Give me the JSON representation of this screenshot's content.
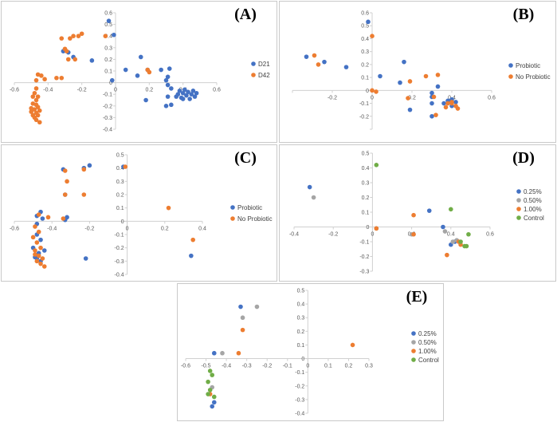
{
  "chart_data": [
    {
      "type": "scatter",
      "panel_label": "(A)",
      "title": "",
      "xlabel": "",
      "ylabel": "",
      "xlim": [
        -0.6,
        0.6
      ],
      "ylim": [
        -0.4,
        0.6
      ],
      "x_ticks": [
        -0.6,
        -0.4,
        -0.2,
        0,
        0.2,
        0.4,
        0.6
      ],
      "y_ticks": [
        -0.4,
        -0.3,
        -0.2,
        -0.1,
        0,
        0.1,
        0.2,
        0.3,
        0.4,
        0.5,
        0.6
      ],
      "x_tick_labels": [
        "-0.6",
        "-0.4",
        "-0.2",
        "0",
        "0.2",
        "0.4",
        "0.6"
      ],
      "y_tick_labels": [
        "-0.4",
        "-0.3",
        "-0.2",
        "-0.1",
        "0",
        "0.1",
        "0.2",
        "0.3",
        "0.4",
        "0.5",
        "0.6"
      ],
      "grid": false,
      "legend": "right",
      "series": [
        {
          "name": "D21",
          "color": "#4472C4",
          "points": [
            [
              -0.04,
              0.53
            ],
            [
              -0.01,
              0.41
            ],
            [
              -0.31,
              0.27
            ],
            [
              -0.28,
              0.26
            ],
            [
              -0.25,
              0.22
            ],
            [
              -0.14,
              0.19
            ],
            [
              -0.02,
              0.02
            ],
            [
              0.06,
              0.11
            ],
            [
              0.13,
              0.06
            ],
            [
              0.15,
              0.22
            ],
            [
              0.19,
              0.11
            ],
            [
              0.18,
              -0.15
            ],
            [
              0.27,
              0.11
            ],
            [
              0.32,
              0.12
            ],
            [
              0.31,
              0.05
            ],
            [
              0.3,
              0.02
            ],
            [
              0.31,
              -0.02
            ],
            [
              0.33,
              -0.05
            ],
            [
              0.31,
              -0.12
            ],
            [
              0.3,
              -0.2
            ],
            [
              0.33,
              -0.19
            ],
            [
              0.37,
              -0.1
            ],
            [
              0.38,
              -0.07
            ],
            [
              0.39,
              -0.13
            ],
            [
              0.4,
              -0.09
            ],
            [
              0.41,
              -0.06
            ],
            [
              0.42,
              -0.11
            ],
            [
              0.43,
              -0.08
            ],
            [
              0.44,
              -0.14
            ],
            [
              0.45,
              -0.1
            ],
            [
              0.46,
              -0.07
            ],
            [
              0.47,
              -0.12
            ],
            [
              0.48,
              -0.09
            ],
            [
              0.4,
              -0.14
            ],
            [
              0.36,
              -0.12
            ]
          ]
        },
        {
          "name": "D42",
          "color": "#ED7D31",
          "points": [
            [
              -0.32,
              0.38
            ],
            [
              -0.27,
              0.38
            ],
            [
              -0.25,
              0.4
            ],
            [
              -0.2,
              0.42
            ],
            [
              -0.3,
              0.29
            ],
            [
              -0.29,
              0.27
            ],
            [
              -0.24,
              0.2
            ],
            [
              -0.28,
              0.2
            ],
            [
              -0.06,
              0.4
            ],
            [
              -0.32,
              0.04
            ],
            [
              -0.35,
              0.04
            ],
            [
              -0.22,
              0.4
            ],
            [
              -0.44,
              0.06
            ],
            [
              -0.42,
              0.03
            ],
            [
              -0.46,
              0.07
            ],
            [
              -0.47,
              -0.05
            ],
            [
              -0.48,
              -0.09
            ],
            [
              -0.49,
              -0.12
            ],
            [
              -0.47,
              -0.15
            ],
            [
              -0.49,
              -0.18
            ],
            [
              -0.46,
              -0.21
            ],
            [
              -0.48,
              -0.23
            ],
            [
              -0.47,
              -0.26
            ],
            [
              -0.49,
              -0.28
            ],
            [
              -0.48,
              -0.3
            ],
            [
              -0.47,
              -0.32
            ],
            [
              -0.45,
              -0.34
            ],
            [
              -0.46,
              -0.12
            ],
            [
              -0.47,
              -0.19
            ],
            [
              -0.5,
              -0.22
            ],
            [
              -0.45,
              -0.24
            ],
            [
              -0.46,
              -0.28
            ],
            [
              -0.5,
              -0.25
            ],
            [
              -0.47,
              0.02
            ],
            [
              0.2,
              0.09
            ],
            [
              0.19,
              0.11
            ]
          ]
        }
      ]
    },
    {
      "type": "scatter",
      "panel_label": "(B)",
      "title": "",
      "xlabel": "",
      "ylabel": "",
      "xlim": [
        -0.4,
        0.6
      ],
      "ylim": [
        -0.3,
        0.6
      ],
      "x_ticks": [
        -0.4,
        -0.2,
        0,
        0.2,
        0.4,
        0.6
      ],
      "y_ticks": [
        -0.3,
        -0.2,
        -0.1,
        0,
        0.1,
        0.2,
        0.3,
        0.4,
        0.5,
        0.6
      ],
      "x_tick_labels": [
        "",
        "-0.2",
        "0",
        "0.2",
        "0.4",
        "0.6"
      ],
      "y_tick_labels": [
        "",
        "-0.2",
        "-0.1",
        "0",
        "0.1",
        "0.2",
        "0.3",
        "0.4",
        "0.5",
        "0.6"
      ],
      "grid": false,
      "legend": "right",
      "series": [
        {
          "name": "Probiotic",
          "color": "#4472C4",
          "points": [
            [
              -0.02,
              0.53
            ],
            [
              -0.33,
              0.26
            ],
            [
              -0.24,
              0.22
            ],
            [
              -0.13,
              0.18
            ],
            [
              0.04,
              0.11
            ],
            [
              0.14,
              0.06
            ],
            [
              0.16,
              0.22
            ],
            [
              0.19,
              -0.15
            ],
            [
              0.3,
              -0.2
            ],
            [
              0.3,
              -0.1
            ],
            [
              0.3,
              -0.05
            ],
            [
              0.3,
              -0.02
            ],
            [
              0.33,
              0.03
            ],
            [
              0.38,
              -0.08
            ],
            [
              0.4,
              -0.07
            ],
            [
              0.42,
              -0.09
            ],
            [
              0.4,
              -0.12
            ],
            [
              0.36,
              -0.1
            ]
          ]
        },
        {
          "name": "No Probiotic",
          "color": "#ED7D31",
          "points": [
            [
              0.0,
              0.42
            ],
            [
              -0.29,
              0.27
            ],
            [
              -0.27,
              0.2
            ],
            [
              0.0,
              0.0
            ],
            [
              0.02,
              -0.01
            ],
            [
              0.19,
              0.07
            ],
            [
              0.18,
              -0.06
            ],
            [
              0.27,
              0.11
            ],
            [
              0.33,
              0.12
            ],
            [
              0.31,
              -0.05
            ],
            [
              0.32,
              -0.19
            ],
            [
              0.38,
              -0.1
            ],
            [
              0.4,
              -0.1
            ],
            [
              0.42,
              -0.12
            ],
            [
              0.43,
              -0.14
            ],
            [
              0.37,
              -0.13
            ],
            [
              0.4,
              -0.09
            ]
          ]
        }
      ]
    },
    {
      "type": "scatter",
      "panel_label": "(C)",
      "title": "",
      "xlabel": "",
      "ylabel": "",
      "xlim": [
        -0.6,
        0.4
      ],
      "ylim": [
        -0.4,
        0.5
      ],
      "x_ticks": [
        -0.6,
        -0.4,
        -0.2,
        0,
        0.2,
        0.4
      ],
      "y_ticks": [
        -0.4,
        -0.3,
        -0.2,
        -0.1,
        0,
        0.1,
        0.2,
        0.3,
        0.4,
        0.5
      ],
      "x_tick_labels": [
        "-0.6",
        "-0.4",
        "-0.2",
        "0",
        "0.2",
        "0.4"
      ],
      "y_tick_labels": [
        "-0.4",
        "-0.3",
        "-0.2",
        "-0.1",
        "0",
        "0.1",
        "0.2",
        "0.3",
        "0.4",
        "0.5"
      ],
      "grid": false,
      "legend": "right",
      "series": [
        {
          "name": "Probiotic",
          "color": "#4472C4",
          "points": [
            [
              -0.2,
              0.42
            ],
            [
              -0.23,
              0.4
            ],
            [
              -0.34,
              0.39
            ],
            [
              -0.33,
              0.2
            ],
            [
              -0.46,
              0.07
            ],
            [
              -0.48,
              0.04
            ],
            [
              -0.45,
              0.02
            ],
            [
              -0.33,
              0.01
            ],
            [
              -0.48,
              -0.02
            ],
            [
              -0.48,
              -0.1
            ],
            [
              -0.46,
              -0.14
            ],
            [
              -0.5,
              -0.2
            ],
            [
              -0.47,
              -0.24
            ],
            [
              -0.49,
              -0.27
            ],
            [
              -0.46,
              -0.3
            ],
            [
              -0.48,
              -0.28
            ],
            [
              -0.44,
              -0.22
            ],
            [
              -0.22,
              -0.28
            ],
            [
              0.34,
              -0.26
            ],
            [
              -0.02,
              0.41
            ],
            [
              -0.32,
              0.03
            ]
          ]
        },
        {
          "name": "No Probiotic",
          "color": "#ED7D31",
          "points": [
            [
              -0.33,
              0.38
            ],
            [
              -0.23,
              0.39
            ],
            [
              -0.01,
              0.41
            ],
            [
              -0.32,
              0.3
            ],
            [
              -0.33,
              0.2
            ],
            [
              -0.23,
              0.2
            ],
            [
              0.22,
              0.1
            ],
            [
              -0.47,
              0.05
            ],
            [
              -0.42,
              0.03
            ],
            [
              -0.34,
              0.02
            ],
            [
              -0.49,
              -0.04
            ],
            [
              -0.47,
              -0.08
            ],
            [
              -0.5,
              -0.12
            ],
            [
              -0.48,
              -0.16
            ],
            [
              -0.46,
              -0.2
            ],
            [
              -0.49,
              -0.22
            ],
            [
              -0.47,
              -0.26
            ],
            [
              -0.45,
              -0.28
            ],
            [
              -0.48,
              -0.3
            ],
            [
              -0.46,
              -0.32
            ],
            [
              -0.44,
              -0.34
            ],
            [
              0.35,
              -0.14
            ],
            [
              -0.49,
              -0.25
            ]
          ]
        }
      ]
    },
    {
      "type": "scatter",
      "panel_label": "(D)",
      "title": "",
      "xlabel": "",
      "ylabel": "",
      "xlim": [
        -0.4,
        0.6
      ],
      "ylim": [
        -0.3,
        0.5
      ],
      "x_ticks": [
        -0.4,
        -0.2,
        0,
        0.2,
        0.4,
        0.6
      ],
      "y_ticks": [
        -0.3,
        -0.2,
        -0.1,
        0,
        0.1,
        0.2,
        0.3,
        0.4,
        0.5
      ],
      "x_tick_labels": [
        "-0.4",
        "-0.2",
        "0",
        "0.2",
        "0.4",
        "0.6"
      ],
      "y_tick_labels": [
        "-0.3",
        "-0.2",
        "-0.1",
        "0",
        "0.1",
        "0.2",
        "0.3",
        "0.4",
        "0.5"
      ],
      "grid": false,
      "legend": "right",
      "series": [
        {
          "name": "0.25%",
          "color": "#4472C4",
          "points": [
            [
              -0.32,
              0.27
            ],
            [
              0.29,
              0.11
            ],
            [
              0.36,
              0.0
            ],
            [
              0.4,
              -0.12
            ],
            [
              0.42,
              -0.1
            ]
          ]
        },
        {
          "name": "0.50%",
          "color": "#A5A5A5",
          "points": [
            [
              -0.3,
              0.2
            ],
            [
              0.2,
              -0.05
            ],
            [
              0.02,
              -0.01
            ],
            [
              0.37,
              -0.03
            ],
            [
              0.41,
              -0.1
            ],
            [
              0.43,
              -0.09
            ]
          ]
        },
        {
          "name": "1.00%",
          "color": "#ED7D31",
          "points": [
            [
              0.21,
              0.08
            ],
            [
              0.02,
              -0.01
            ],
            [
              0.38,
              -0.19
            ],
            [
              0.44,
              -0.1
            ],
            [
              0.21,
              -0.05
            ],
            [
              0.45,
              -0.12
            ]
          ]
        },
        {
          "name": "Control",
          "color": "#70AD47",
          "points": [
            [
              0.02,
              0.42
            ],
            [
              0.4,
              0.12
            ],
            [
              0.49,
              -0.05
            ],
            [
              0.45,
              -0.1
            ],
            [
              0.47,
              -0.13
            ],
            [
              0.48,
              -0.13
            ]
          ]
        }
      ]
    },
    {
      "type": "scatter",
      "panel_label": "(E)",
      "title": "",
      "xlabel": "",
      "ylabel": "",
      "xlim": [
        -0.6,
        0.3
      ],
      "ylim": [
        -0.4,
        0.5
      ],
      "x_ticks": [
        -0.6,
        -0.5,
        -0.4,
        -0.3,
        -0.2,
        -0.1,
        0,
        0.1,
        0.2,
        0.3
      ],
      "y_ticks": [
        -0.4,
        -0.3,
        -0.2,
        -0.1,
        0,
        0.1,
        0.2,
        0.3,
        0.4,
        0.5
      ],
      "x_tick_labels": [
        "-0.6",
        "-0.5",
        "-0.4",
        "-0.3",
        "-0.2",
        "-0.1",
        "0",
        "0.1",
        "0.2",
        "0.3"
      ],
      "y_tick_labels": [
        "-0.4",
        "-0.3",
        "-0.2",
        "-0.1",
        "0",
        "0.1",
        "0.2",
        "0.3",
        "0.4",
        "0.5"
      ],
      "grid": false,
      "legend": "right",
      "series": [
        {
          "name": "0.25%",
          "color": "#4472C4",
          "points": [
            [
              -0.33,
              0.38
            ],
            [
              -0.46,
              0.04
            ],
            [
              -0.46,
              -0.32
            ],
            [
              -0.47,
              -0.35
            ]
          ]
        },
        {
          "name": "0.50%",
          "color": "#A5A5A5",
          "points": [
            [
              -0.25,
              0.38
            ],
            [
              -0.32,
              0.3
            ],
            [
              -0.42,
              0.04
            ],
            [
              -0.47,
              -0.21
            ]
          ]
        },
        {
          "name": "1.00%",
          "color": "#ED7D31",
          "points": [
            [
              -0.32,
              0.21
            ],
            [
              -0.34,
              0.04
            ],
            [
              0.22,
              0.1
            ],
            [
              -0.48,
              -0.26
            ]
          ]
        },
        {
          "name": "Control",
          "color": "#70AD47",
          "points": [
            [
              -0.48,
              -0.09
            ],
            [
              -0.47,
              -0.12
            ],
            [
              -0.49,
              -0.17
            ],
            [
              -0.48,
              -0.23
            ],
            [
              -0.46,
              -0.28
            ],
            [
              -0.49,
              -0.26
            ]
          ]
        }
      ]
    }
  ]
}
